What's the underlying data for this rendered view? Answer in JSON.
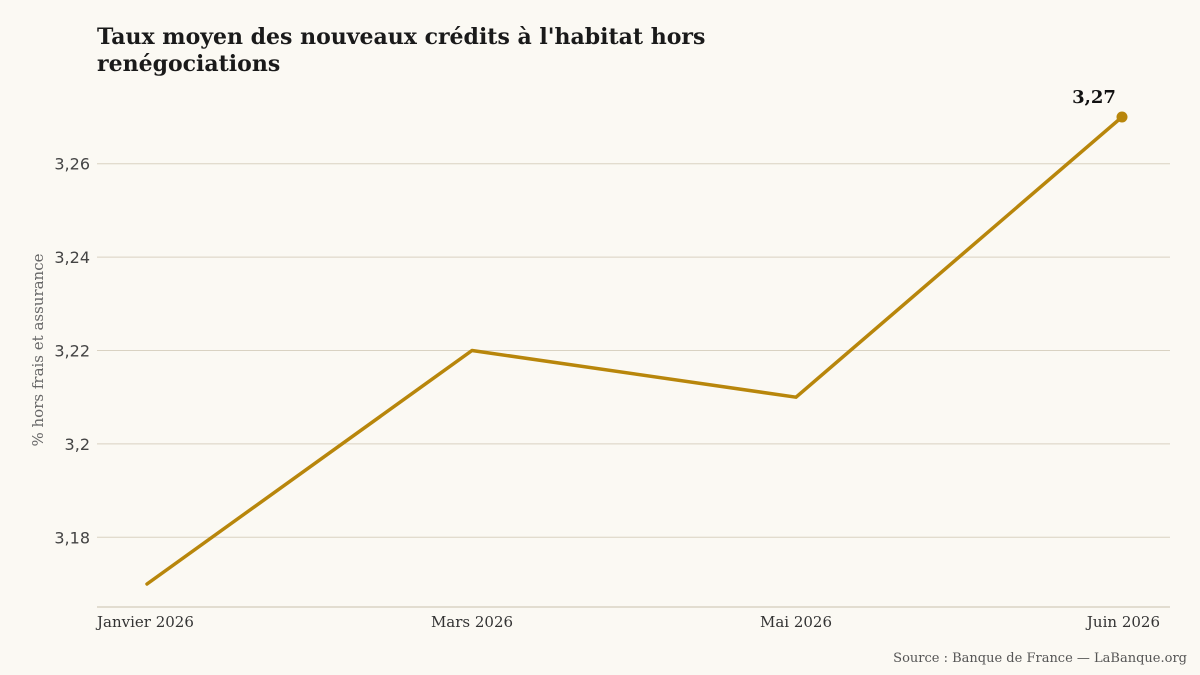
{
  "chart_data": {
    "type": "line",
    "title": "Taux moyen des nouveaux crédits à l'habitat hors renégociations",
    "ylabel": "% hors frais et assurance",
    "xlabel": "",
    "x": [
      "Janvier 2026",
      "Mars 2026",
      "Mai 2026",
      "Juin 2026"
    ],
    "series": [
      {
        "values": [
          3.17,
          3.22,
          3.21,
          3.27
        ],
        "color": "#b8860b"
      }
    ],
    "ylim": [
      3.17,
      3.27
    ],
    "yticks": [
      {
        "value": 3.18,
        "label": "3,18"
      },
      {
        "value": 3.2,
        "label": "3,2"
      },
      {
        "value": 3.22,
        "label": "3,22"
      },
      {
        "value": 3.24,
        "label": "3,24"
      },
      {
        "value": 3.26,
        "label": "3,26"
      }
    ],
    "end_label": "3,27",
    "grid": true,
    "legend": "none"
  },
  "source": "Source : Banque de France — LaBanque.org"
}
